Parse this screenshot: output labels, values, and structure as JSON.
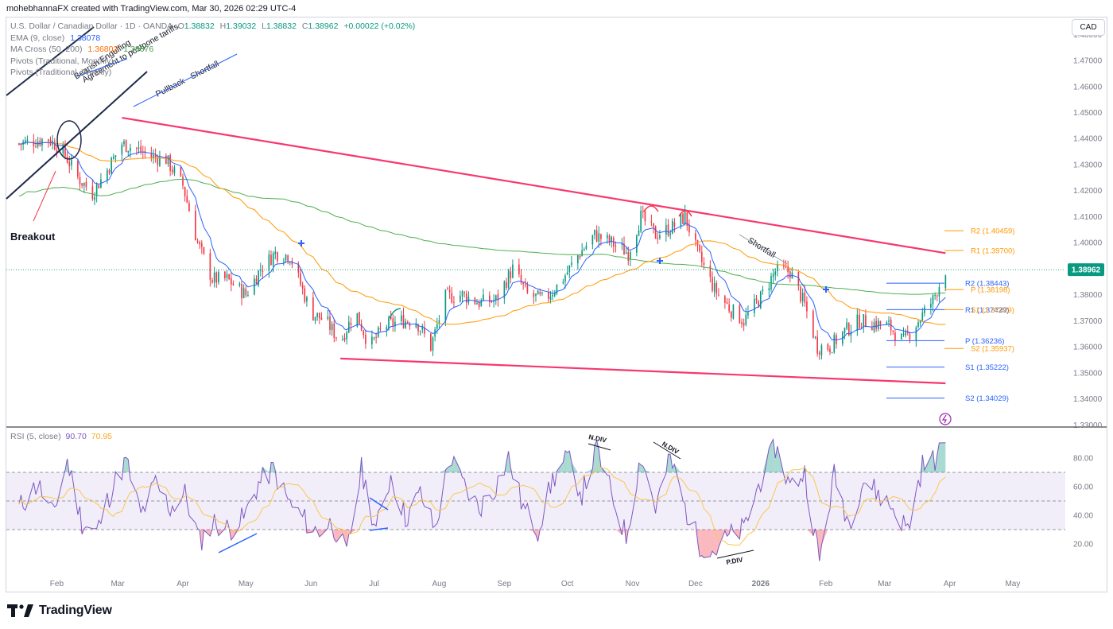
{
  "header": {
    "credit": "mohebhannaFX created with TradingView.com, Mar 30, 2026 02:29 UTC-4"
  },
  "legend": {
    "symbol": "U.S. Dollar / Canadian Dollar · 1D · OANDA",
    "o_label": "O",
    "o": "1.38832",
    "h_label": "H",
    "h": "1.39032",
    "l_label": "L",
    "l": "1.38832",
    "c_label": "C",
    "c": "1.38962",
    "chg": "+0.00022 (+0.02%)",
    "ema": "EMA (9, close)",
    "ema_val": "1.38078",
    "ma": "MA Cross (50, 200)",
    "ma_val1": "1.36802",
    "ma_val2": "1.38076",
    "piv_m": "Pivots (Traditional, Monthly)",
    "piv_w": "Pivots (Traditional, Weekly)"
  },
  "currency": "CAD",
  "rsi_legend": {
    "label": "RSI (5, close)",
    "v1": "90.70",
    "v2": "70.95"
  },
  "brand": {
    "name": "TradingView"
  },
  "colors": {
    "up": "#089981",
    "down": "#f23645",
    "ema": "#2962ff",
    "ma50": "#ff9800",
    "ma200": "#4caf50",
    "trend": "#f7376f",
    "rsi": "#7e57c2",
    "price_badge": "#089981"
  },
  "chart_data": [
    {
      "type": "candlestick",
      "title": "U.S. Dollar / Canadian Dollar · 1D · OANDA",
      "y_axis_labels": [
        "1.48000",
        "1.47000",
        "1.46000",
        "1.45000",
        "1.44000",
        "1.43000",
        "1.42000",
        "1.41000",
        "1.40000",
        "1.39000",
        "1.38000",
        "1.37000",
        "1.36000",
        "1.35000",
        "1.34000",
        "1.33000"
      ],
      "x_axis_labels": [
        "Feb",
        "Mar",
        "Apr",
        "May",
        "Jun",
        "Jul",
        "Aug",
        "Sep",
        "Oct",
        "Nov",
        "Dec",
        "2026",
        "Feb",
        "Mar",
        "Apr",
        "May"
      ],
      "ylim": [
        1.3295,
        1.4865
      ],
      "last_price": "1.38962",
      "close_path": [
        {
          "x": "2025-01-13",
          "y": 1.438
        },
        {
          "x": "2025-01-27",
          "y": 1.44
        },
        {
          "x": "2025-02-03",
          "y": 1.435
        },
        {
          "x": "2025-02-10",
          "y": 1.425
        },
        {
          "x": "2025-02-17",
          "y": 1.419
        },
        {
          "x": "2025-02-24",
          "y": 1.428
        },
        {
          "x": "2025-03-03",
          "y": 1.438
        },
        {
          "x": "2025-03-10",
          "y": 1.436
        },
        {
          "x": "2025-03-17",
          "y": 1.433
        },
        {
          "x": "2025-03-24",
          "y": 1.432
        },
        {
          "x": "2025-04-01",
          "y": 1.422
        },
        {
          "x": "2025-04-08",
          "y": 1.4
        },
        {
          "x": "2025-04-15",
          "y": 1.386
        },
        {
          "x": "2025-04-22",
          "y": 1.386
        },
        {
          "x": "2025-05-01",
          "y": 1.38
        },
        {
          "x": "2025-05-08",
          "y": 1.39
        },
        {
          "x": "2025-05-15",
          "y": 1.396
        },
        {
          "x": "2025-05-22",
          "y": 1.395
        },
        {
          "x": "2025-06-01",
          "y": 1.373
        },
        {
          "x": "2025-06-08",
          "y": 1.37
        },
        {
          "x": "2025-06-15",
          "y": 1.362
        },
        {
          "x": "2025-06-22",
          "y": 1.374
        },
        {
          "x": "2025-06-29",
          "y": 1.36
        },
        {
          "x": "2025-07-06",
          "y": 1.368
        },
        {
          "x": "2025-07-14",
          "y": 1.37
        },
        {
          "x": "2025-07-21",
          "y": 1.37
        },
        {
          "x": "2025-07-28",
          "y": 1.36
        },
        {
          "x": "2025-08-04",
          "y": 1.379
        },
        {
          "x": "2025-08-12",
          "y": 1.38
        },
        {
          "x": "2025-08-20",
          "y": 1.377
        },
        {
          "x": "2025-08-28",
          "y": 1.378
        },
        {
          "x": "2025-09-05",
          "y": 1.39
        },
        {
          "x": "2025-09-12",
          "y": 1.38
        },
        {
          "x": "2025-09-20",
          "y": 1.378
        },
        {
          "x": "2025-09-28",
          "y": 1.385
        },
        {
          "x": "2025-10-06",
          "y": 1.395
        },
        {
          "x": "2025-10-14",
          "y": 1.403
        },
        {
          "x": "2025-10-22",
          "y": 1.4
        },
        {
          "x": "2025-10-30",
          "y": 1.396
        },
        {
          "x": "2025-11-05",
          "y": 1.41
        },
        {
          "x": "2025-11-12",
          "y": 1.403
        },
        {
          "x": "2025-11-20",
          "y": 1.406
        },
        {
          "x": "2025-11-26",
          "y": 1.41
        },
        {
          "x": "2025-12-02",
          "y": 1.396
        },
        {
          "x": "2025-12-10",
          "y": 1.382
        },
        {
          "x": "2025-12-18",
          "y": 1.374
        },
        {
          "x": "2025-12-24",
          "y": 1.37
        },
        {
          "x": "2026-01-01",
          "y": 1.379
        },
        {
          "x": "2026-01-08",
          "y": 1.389
        },
        {
          "x": "2026-01-15",
          "y": 1.389
        },
        {
          "x": "2026-01-22",
          "y": 1.376
        },
        {
          "x": "2026-01-28",
          "y": 1.36
        },
        {
          "x": "2026-02-03",
          "y": 1.36
        },
        {
          "x": "2026-02-10",
          "y": 1.366
        },
        {
          "x": "2026-02-17",
          "y": 1.37
        },
        {
          "x": "2026-02-24",
          "y": 1.369
        },
        {
          "x": "2026-03-03",
          "y": 1.368
        },
        {
          "x": "2026-03-10",
          "y": 1.362
        },
        {
          "x": "2026-03-17",
          "y": 1.37
        },
        {
          "x": "2026-03-24",
          "y": 1.378
        },
        {
          "x": "2026-03-30",
          "y": 1.3896
        }
      ],
      "trend_lines": [
        {
          "name": "upper-trendline",
          "from": [
            "2025-03-03",
            1.448
          ],
          "to": [
            "2026-03-30",
            1.396
          ]
        },
        {
          "name": "lower-trendline",
          "from": [
            "2025-06-15",
            1.3555
          ],
          "to": [
            "2026-03-30",
            1.346
          ]
        }
      ],
      "pivot_levels": [
        {
          "label": "R2 (1.40459)",
          "value": 1.40459,
          "color": "#ff9800"
        },
        {
          "label": "R1 (1.39700)",
          "value": 1.397,
          "color": "#ff9800"
        },
        {
          "label": "R2 (1.38443)",
          "value": 1.38443,
          "color": "#2962ff"
        },
        {
          "label": "P (1.38198)",
          "value": 1.38198,
          "color": "#ff9800"
        },
        {
          "label": "R1 (1.37429)",
          "value": 1.37429,
          "color": "#2962ff"
        },
        {
          "label": "S1 (1.37429)",
          "value": 1.37429,
          "color": "#ff9800"
        },
        {
          "label": "P (1.36236)",
          "value": 1.36236,
          "color": "#2962ff"
        },
        {
          "label": "S2 (1.35937)",
          "value": 1.35937,
          "color": "#ff9800"
        },
        {
          "label": "S1 (1.35222)",
          "value": 1.35222,
          "color": "#2962ff"
        },
        {
          "label": "S2 (1.34029)",
          "value": 1.34029,
          "color": "#2962ff"
        }
      ],
      "annotations": [
        "Bearish Engulfing",
        "Agreement to postpone tariffs",
        "Pullback - Shortfall",
        "Breakout",
        "Shortfall"
      ]
    },
    {
      "type": "line",
      "title": "RSI (5, close)",
      "y_axis_labels": [
        "80.00",
        "60.00",
        "40.00",
        "20.00"
      ],
      "ylim": [
        0,
        100
      ],
      "band": [
        30,
        70
      ],
      "rsi_path": [
        {
          "x": "2025-01-13",
          "y": 45
        },
        {
          "x": "2025-01-22",
          "y": 62
        },
        {
          "x": "2025-01-29",
          "y": 40
        },
        {
          "x": "2025-02-05",
          "y": 78
        },
        {
          "x": "2025-02-12",
          "y": 35
        },
        {
          "x": "2025-02-19",
          "y": 28
        },
        {
          "x": "2025-02-26",
          "y": 58
        },
        {
          "x": "2025-03-05",
          "y": 78
        },
        {
          "x": "2025-03-12",
          "y": 40
        },
        {
          "x": "2025-03-19",
          "y": 62
        },
        {
          "x": "2025-03-26",
          "y": 45
        },
        {
          "x": "2025-04-02",
          "y": 55
        },
        {
          "x": "2025-04-09",
          "y": 22
        },
        {
          "x": "2025-04-16",
          "y": 35
        },
        {
          "x": "2025-04-23",
          "y": 30
        },
        {
          "x": "2025-04-30",
          "y": 38
        },
        {
          "x": "2025-05-07",
          "y": 62
        },
        {
          "x": "2025-05-14",
          "y": 72
        },
        {
          "x": "2025-05-21",
          "y": 50
        },
        {
          "x": "2025-05-28",
          "y": 38
        },
        {
          "x": "2025-06-04",
          "y": 28
        },
        {
          "x": "2025-06-11",
          "y": 35
        },
        {
          "x": "2025-06-18",
          "y": 12
        },
        {
          "x": "2025-06-25",
          "y": 72
        },
        {
          "x": "2025-07-02",
          "y": 30
        },
        {
          "x": "2025-07-09",
          "y": 68
        },
        {
          "x": "2025-07-16",
          "y": 38
        },
        {
          "x": "2025-07-23",
          "y": 55
        },
        {
          "x": "2025-07-30",
          "y": 30
        },
        {
          "x": "2025-08-06",
          "y": 80
        },
        {
          "x": "2025-08-13",
          "y": 60
        },
        {
          "x": "2025-08-20",
          "y": 45
        },
        {
          "x": "2025-08-27",
          "y": 58
        },
        {
          "x": "2025-09-03",
          "y": 80
        },
        {
          "x": "2025-09-10",
          "y": 45
        },
        {
          "x": "2025-09-17",
          "y": 30
        },
        {
          "x": "2025-09-24",
          "y": 65
        },
        {
          "x": "2025-10-01",
          "y": 80
        },
        {
          "x": "2025-10-08",
          "y": 55
        },
        {
          "x": "2025-10-15",
          "y": 86
        },
        {
          "x": "2025-10-22",
          "y": 55
        },
        {
          "x": "2025-10-29",
          "y": 25
        },
        {
          "x": "2025-11-05",
          "y": 82
        },
        {
          "x": "2025-11-12",
          "y": 45
        },
        {
          "x": "2025-11-19",
          "y": 80
        },
        {
          "x": "2025-11-26",
          "y": 45
        },
        {
          "x": "2025-12-03",
          "y": 20
        },
        {
          "x": "2025-12-10",
          "y": 15
        },
        {
          "x": "2025-12-17",
          "y": 25
        },
        {
          "x": "2025-12-24",
          "y": 30
        },
        {
          "x": "2026-01-01",
          "y": 65
        },
        {
          "x": "2026-01-08",
          "y": 88
        },
        {
          "x": "2026-01-15",
          "y": 60
        },
        {
          "x": "2026-01-22",
          "y": 70
        },
        {
          "x": "2026-01-29",
          "y": 8
        },
        {
          "x": "2026-02-05",
          "y": 68
        },
        {
          "x": "2026-02-12",
          "y": 35
        },
        {
          "x": "2026-02-19",
          "y": 65
        },
        {
          "x": "2026-02-26",
          "y": 55
        },
        {
          "x": "2026-03-05",
          "y": 45
        },
        {
          "x": "2026-03-12",
          "y": 30
        },
        {
          "x": "2026-03-19",
          "y": 75
        },
        {
          "x": "2026-03-26",
          "y": 80
        },
        {
          "x": "2026-03-30",
          "y": 90.7
        }
      ],
      "annotations": [
        "N.DIV",
        "N.DIV",
        "P.DIV"
      ]
    }
  ]
}
